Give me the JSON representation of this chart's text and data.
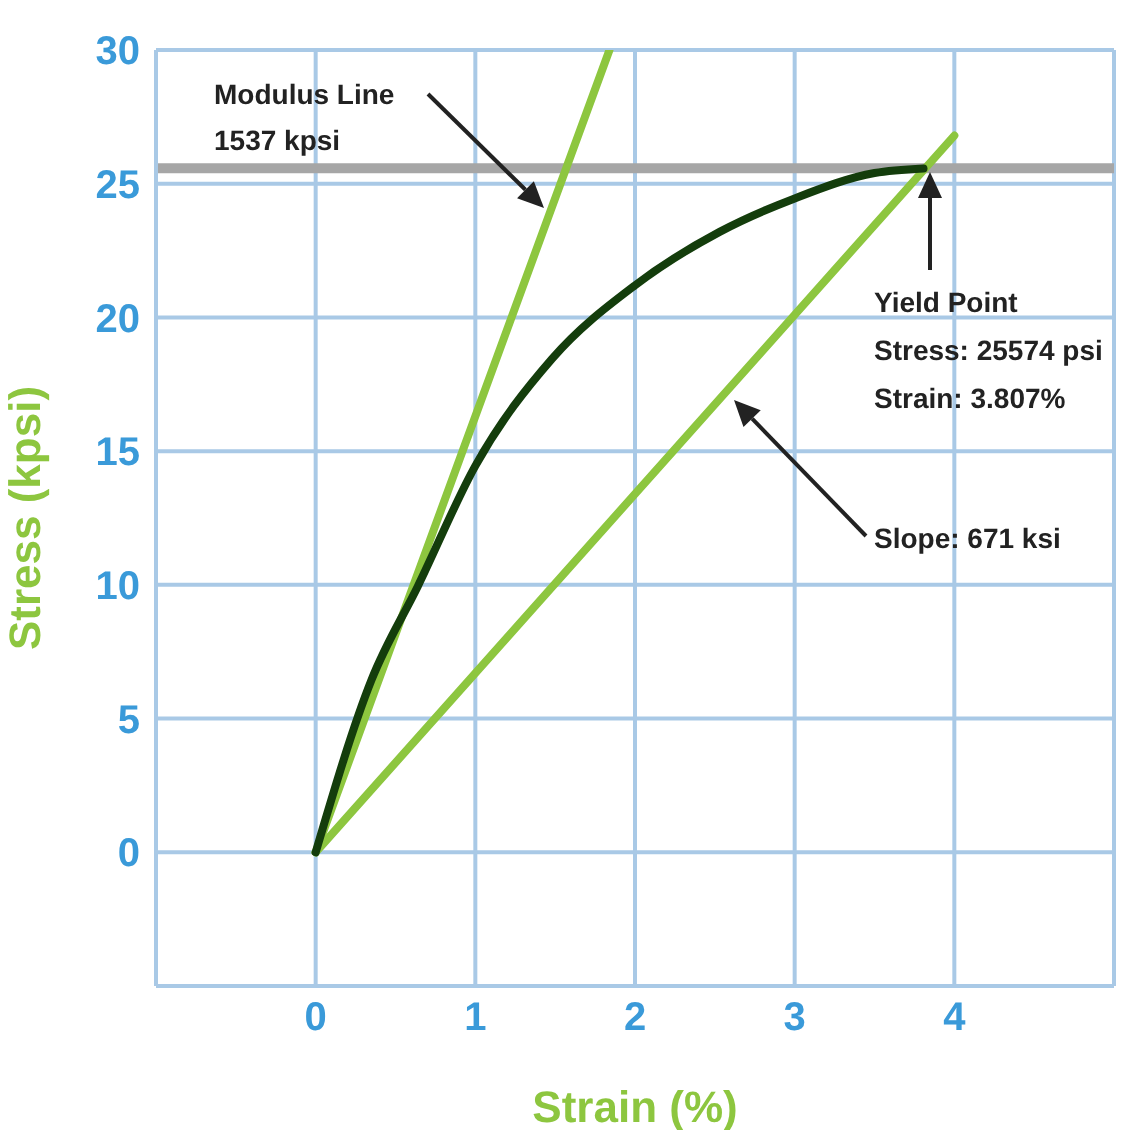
{
  "chart_data": {
    "type": "line",
    "xlabel": "Strain (%)",
    "ylabel": "Stress (kpsi)",
    "xlim": [
      -1,
      5
    ],
    "ylim": [
      -5,
      30
    ],
    "xticks": [
      0,
      1,
      2,
      3,
      4
    ],
    "yticks": [
      0,
      5,
      10,
      15,
      20,
      25,
      30
    ],
    "grid": true,
    "marker": "none",
    "line_style": "solid",
    "series": [
      {
        "color": "#8dc63f",
        "x": [
          0,
          1.84
        ],
        "values": [
          0,
          30
        ]
      },
      {
        "color": "#8dc63f",
        "x": [
          0,
          4
        ],
        "values": [
          0,
          26.8
        ]
      },
      {
        "color": "#143d0c",
        "x": [
          0,
          0.35,
          0.64,
          1.0,
          1.48,
          2.0,
          2.53,
          3.0,
          3.5,
          3.807
        ],
        "values": [
          0,
          6.45,
          9.95,
          14.45,
          18.45,
          21.2,
          23.2,
          24.45,
          25.4,
          25.57
        ]
      }
    ],
    "ref_lines": [
      {
        "axis": "y",
        "value": 25.574,
        "color": "#a6a6a6"
      }
    ],
    "annotations": [
      "Modulus Line",
      "1537 kpsi",
      "Yield Point",
      "Stress: 25574 psi",
      "Strain: 3.807%",
      "Slope: 671 ksi"
    ]
  }
}
